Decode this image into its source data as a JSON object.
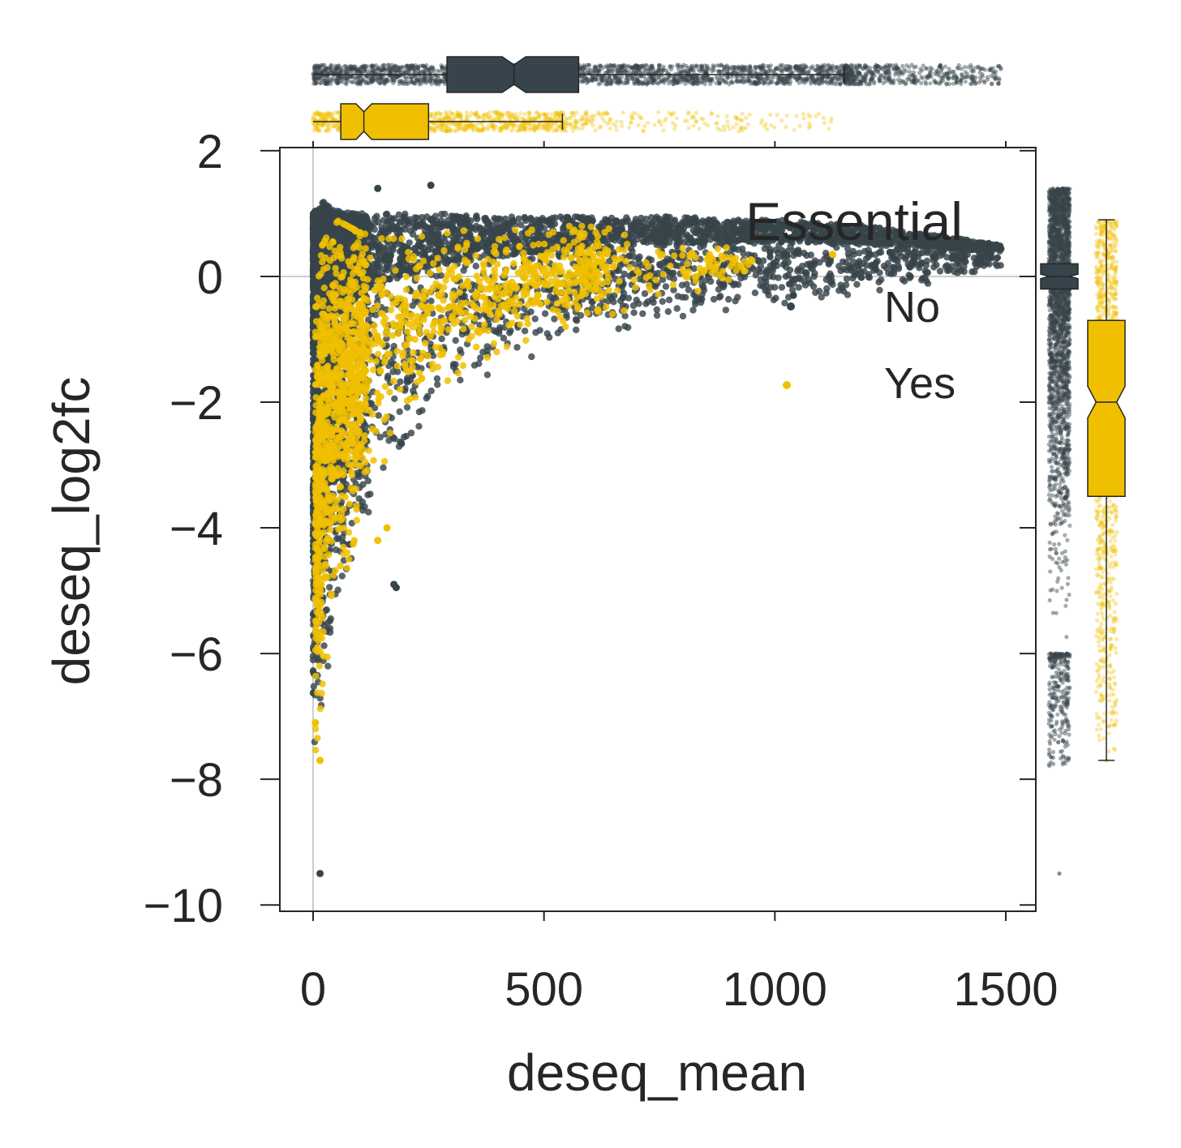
{
  "chart_data": {
    "type": "scatter",
    "title": "",
    "xlabel": "deseq_mean",
    "ylabel": "deseq_log2fc",
    "xlim": [
      -72,
      1565
    ],
    "ylim": [
      -10.1,
      2.05
    ],
    "xticks": [
      "0",
      "500",
      "1000",
      "1500"
    ],
    "xtick_values": [
      0,
      500,
      1000,
      1500
    ],
    "yticks": [
      "2",
      "0",
      "−2",
      "−4",
      "−6",
      "−8",
      "−10"
    ],
    "ytick_values": [
      2,
      0,
      -2,
      -4,
      -6,
      -8,
      -10
    ],
    "grid": false,
    "reference_lines": {
      "x": 0,
      "y": 0,
      "color": "#cccccc"
    },
    "legend": {
      "title": "Essential",
      "position": "upper-right",
      "entries": [
        {
          "label": "No",
          "color": "#37444b"
        },
        {
          "label": "Yes",
          "color": "#f0c000"
        }
      ]
    },
    "series": [
      {
        "name": "No",
        "color": "#37444b",
        "envelope": {
          "mean": [
            0,
            20,
            50,
            100,
            200,
            300,
            400,
            500,
            600,
            700,
            800,
            900,
            1000,
            1100,
            1200,
            1300,
            1400,
            1490
          ],
          "upper_log2fc": [
            1.0,
            1.2,
            1.05,
            1.0,
            1.0,
            1.0,
            0.95,
            0.95,
            0.95,
            0.95,
            0.95,
            0.9,
            0.9,
            0.85,
            0.8,
            0.7,
            0.6,
            0.5
          ],
          "lower_log2fc": [
            -7.6,
            -7.0,
            -5.6,
            -4.3,
            -2.9,
            -2.0,
            -1.6,
            -1.3,
            -1.1,
            -0.9,
            -0.75,
            -0.6,
            -0.5,
            -0.4,
            -0.3,
            -0.2,
            -0.1,
            0.1
          ]
        },
        "outliers": [
          {
            "mean": 15,
            "log2fc": -9.5
          },
          {
            "mean": 175,
            "log2fc": -4.9
          },
          {
            "mean": 180,
            "log2fc": -4.95
          },
          {
            "mean": 255,
            "log2fc": 1.45
          },
          {
            "mean": 140,
            "log2fc": 1.4
          },
          {
            "mean": 1040,
            "log2fc": -0.3
          },
          {
            "mean": 1385,
            "log2fc": 0.3
          },
          {
            "mean": 1480,
            "log2fc": 0.5
          }
        ],
        "marginal_box_x": {
          "q1": 290,
          "median": 435,
          "q3": 575,
          "whisker_low": 0,
          "whisker_high": 1150,
          "max": 1490
        },
        "marginal_box_y": {
          "q1": -0.2,
          "median": 0.0,
          "q3": 0.2,
          "whisker_low": -6.0,
          "whisker_high": 1.4,
          "min": -9.5
        }
      },
      {
        "name": "Yes",
        "color": "#f0c000",
        "envelope": {
          "mean": [
            5,
            20,
            50,
            100,
            150,
            200,
            300,
            400,
            500,
            600,
            700,
            800,
            900,
            1000,
            1125
          ],
          "upper_log2fc": [
            -0.5,
            0.5,
            0.9,
            0.7,
            0.6,
            0.6,
            0.7,
            0.8,
            0.8,
            0.8,
            0.7,
            0.6,
            0.45,
            0.3,
            0.35
          ],
          "lower_log2fc": [
            -7.7,
            -6.5,
            -5.3,
            -3.9,
            -3.0,
            -2.4,
            -1.7,
            -1.2,
            -0.9,
            -0.7,
            -0.5,
            -0.3,
            -0.1,
            0.1,
            0.3
          ]
        },
        "outliers": [
          {
            "mean": 15,
            "log2fc": -7.7
          },
          {
            "mean": 5,
            "log2fc": -7.1
          },
          {
            "mean": 140,
            "log2fc": -4.2
          },
          {
            "mean": 160,
            "log2fc": -4.0
          },
          {
            "mean": 950,
            "log2fc": 0.25
          },
          {
            "mean": 1125,
            "log2fc": 0.35
          }
        ],
        "marginal_box_x": {
          "q1": 60,
          "median": 110,
          "q3": 250,
          "whisker_low": 0,
          "whisker_high": 540,
          "max": 1125
        },
        "marginal_box_y": {
          "q1": -3.5,
          "median": -2.0,
          "q3": -0.7,
          "whisker_low": -7.7,
          "whisker_high": 0.9,
          "min": -7.7
        }
      }
    ]
  }
}
